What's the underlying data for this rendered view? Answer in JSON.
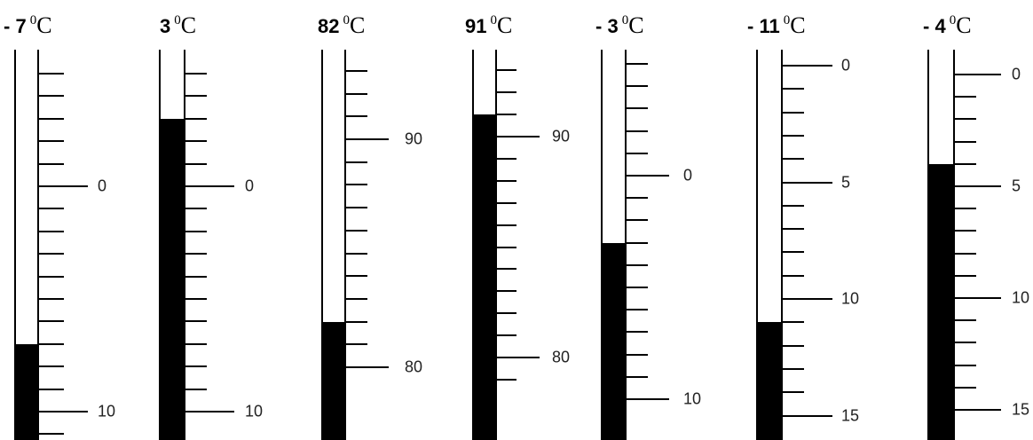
{
  "unit_degree": "0",
  "unit_letter": "C",
  "thermometers": [
    {
      "reading": "- 7",
      "value": 7,
      "labels": [
        {
          "text": "0",
          "value": 0
        },
        {
          "text": "10",
          "value": 10
        }
      ]
    },
    {
      "reading": "3",
      "value": -3,
      "labels": [
        {
          "text": "0",
          "value": 0
        },
        {
          "text": "10",
          "value": 10
        }
      ]
    },
    {
      "reading": "82",
      "value": 82,
      "labels": [
        {
          "text": "90",
          "value": 90
        },
        {
          "text": "80",
          "value": 80
        }
      ]
    },
    {
      "reading": "91",
      "value": 91,
      "labels": [
        {
          "text": "90",
          "value": 90
        },
        {
          "text": "80",
          "value": 80
        }
      ]
    },
    {
      "reading": "- 3",
      "value": 3,
      "labels": [
        {
          "text": "0",
          "value": 0
        },
        {
          "text": "10",
          "value": 10
        }
      ]
    },
    {
      "reading": "- 11",
      "value": 11,
      "labels": [
        {
          "text": "0",
          "value": 0
        },
        {
          "text": "5",
          "value": 5
        },
        {
          "text": "10",
          "value": 10
        },
        {
          "text": "15",
          "value": 15
        }
      ]
    },
    {
      "reading": "- 4",
      "value": 4,
      "labels": [
        {
          "text": "0",
          "value": 0
        },
        {
          "text": "5",
          "value": 5
        },
        {
          "text": "10",
          "value": 10
        },
        {
          "text": "15",
          "value": 15
        }
      ]
    }
  ]
}
